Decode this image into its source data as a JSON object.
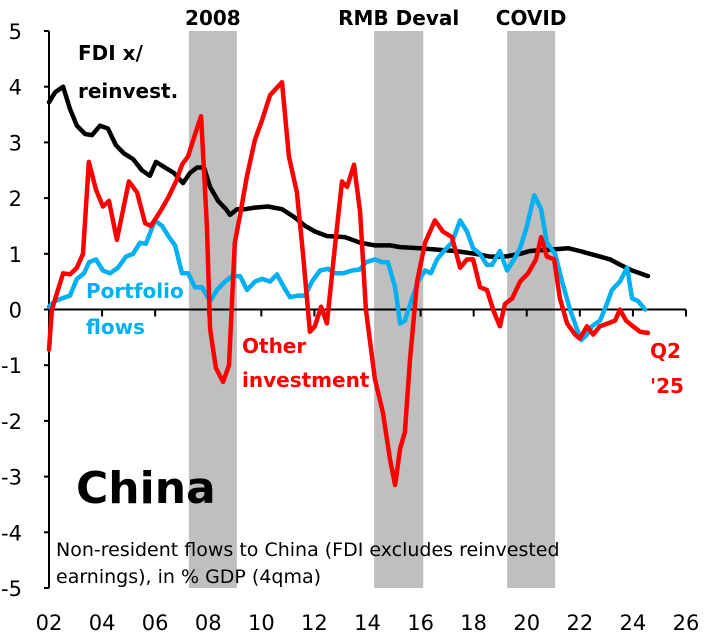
{
  "chart_data": {
    "type": "line",
    "title": "China",
    "note_lines": [
      "Non-resident flows to China (FDI excludes reinvested",
      "earnings), in % GDP (4qma)"
    ],
    "xlim": [
      2002,
      2026
    ],
    "ylim": [
      -5,
      5
    ],
    "x_tick_labels": [
      "02",
      "04",
      "06",
      "08",
      "10",
      "12",
      "14",
      "16",
      "18",
      "20",
      "22",
      "24",
      "26"
    ],
    "y_tick_labels": [
      "5",
      "4",
      "3",
      "2",
      "1",
      "0",
      "-1",
      "-2",
      "-3",
      "-4",
      "-5"
    ],
    "grid": false,
    "shaded_periods": [
      {
        "label": "2008",
        "start": 2007.27,
        "end": 2009.08
      },
      {
        "label": "RMB Deval",
        "start": 2014.25,
        "end": 2016.1
      },
      {
        "label": "COVID",
        "start": 2019.26,
        "end": 2021.07
      }
    ],
    "shade_color": "#bfbfbf",
    "end_label": [
      "Q2",
      "'25"
    ],
    "series": [
      {
        "name": "FDI x/ reinvest.",
        "label_lines": [
          "FDI x/",
          "reinvest."
        ],
        "color": "#000000",
        "points": [
          [
            2002.0,
            3.72
          ],
          [
            2002.23,
            3.9
          ],
          [
            2002.53,
            4.0
          ],
          [
            2002.79,
            3.6
          ],
          [
            2003.05,
            3.3
          ],
          [
            2003.36,
            3.15
          ],
          [
            2003.62,
            3.13
          ],
          [
            2003.92,
            3.3
          ],
          [
            2004.22,
            3.25
          ],
          [
            2004.52,
            2.95
          ],
          [
            2004.83,
            2.8
          ],
          [
            2005.17,
            2.7
          ],
          [
            2005.5,
            2.5
          ],
          [
            2005.8,
            2.4
          ],
          [
            2006.03,
            2.65
          ],
          [
            2006.37,
            2.55
          ],
          [
            2006.71,
            2.45
          ],
          [
            2007.05,
            2.27
          ],
          [
            2007.31,
            2.45
          ],
          [
            2007.58,
            2.55
          ],
          [
            2007.84,
            2.55
          ],
          [
            2008.07,
            2.2
          ],
          [
            2008.37,
            1.95
          ],
          [
            2008.67,
            1.8
          ],
          [
            2008.82,
            1.7
          ],
          [
            2009.09,
            1.8
          ],
          [
            2009.39,
            1.8
          ],
          [
            2009.76,
            1.83
          ],
          [
            2010.25,
            1.85
          ],
          [
            2010.78,
            1.8
          ],
          [
            2011.27,
            1.65
          ],
          [
            2011.65,
            1.5
          ],
          [
            2012.02,
            1.4
          ],
          [
            2012.47,
            1.32
          ],
          [
            2013.15,
            1.3
          ],
          [
            2013.72,
            1.2
          ],
          [
            2014.28,
            1.15
          ],
          [
            2014.85,
            1.15
          ],
          [
            2015.23,
            1.12
          ],
          [
            2015.98,
            1.1
          ],
          [
            2016.73,
            1.07
          ],
          [
            2017.3,
            1.05
          ],
          [
            2018.05,
            1.0
          ],
          [
            2018.62,
            0.95
          ],
          [
            2019.18,
            0.95
          ],
          [
            2019.75,
            1.0
          ],
          [
            2020.12,
            1.05
          ],
          [
            2020.69,
            1.07
          ],
          [
            2021.07,
            1.08
          ],
          [
            2021.56,
            1.1
          ],
          [
            2022.0,
            1.05
          ],
          [
            2022.38,
            1.0
          ],
          [
            2022.76,
            0.95
          ],
          [
            2023.14,
            0.9
          ],
          [
            2023.53,
            0.8
          ],
          [
            2023.97,
            0.7
          ],
          [
            2024.57,
            0.6
          ]
        ]
      },
      {
        "name": "Portfolio flows",
        "label_lines": [
          "Portfolio",
          "flows"
        ],
        "color": "#00b0f0",
        "points": [
          [
            2002.0,
            0.05
          ],
          [
            2002.23,
            0.15
          ],
          [
            2002.49,
            0.2
          ],
          [
            2002.79,
            0.25
          ],
          [
            2003.05,
            0.55
          ],
          [
            2003.32,
            0.65
          ],
          [
            2003.51,
            0.85
          ],
          [
            2003.77,
            0.9
          ],
          [
            2004.03,
            0.7
          ],
          [
            2004.3,
            0.65
          ],
          [
            2004.6,
            0.75
          ],
          [
            2004.9,
            0.95
          ],
          [
            2005.17,
            1.0
          ],
          [
            2005.43,
            1.2
          ],
          [
            2005.65,
            1.18
          ],
          [
            2005.99,
            1.6
          ],
          [
            2006.26,
            1.5
          ],
          [
            2006.52,
            1.3
          ],
          [
            2006.75,
            1.15
          ],
          [
            2007.01,
            0.65
          ],
          [
            2007.24,
            0.65
          ],
          [
            2007.5,
            0.4
          ],
          [
            2007.76,
            0.4
          ],
          [
            2008.07,
            0.15
          ],
          [
            2008.33,
            0.35
          ],
          [
            2008.63,
            0.5
          ],
          [
            2008.9,
            0.6
          ],
          [
            2009.2,
            0.6
          ],
          [
            2009.46,
            0.35
          ],
          [
            2009.76,
            0.5
          ],
          [
            2010.03,
            0.55
          ],
          [
            2010.33,
            0.5
          ],
          [
            2010.59,
            0.63
          ],
          [
            2010.85,
            0.4
          ],
          [
            2011.08,
            0.22
          ],
          [
            2011.38,
            0.25
          ],
          [
            2011.65,
            0.25
          ],
          [
            2011.91,
            0.5
          ],
          [
            2012.21,
            0.7
          ],
          [
            2012.51,
            0.73
          ],
          [
            2012.78,
            0.65
          ],
          [
            2013.08,
            0.65
          ],
          [
            2013.42,
            0.7
          ],
          [
            2013.72,
            0.72
          ],
          [
            2013.94,
            0.85
          ],
          [
            2014.28,
            0.9
          ],
          [
            2014.55,
            0.85
          ],
          [
            2014.77,
            0.85
          ],
          [
            2015.04,
            0.4
          ],
          [
            2015.23,
            -0.25
          ],
          [
            2015.41,
            -0.2
          ],
          [
            2015.68,
            0.2
          ],
          [
            2015.9,
            0.5
          ],
          [
            2016.17,
            0.7
          ],
          [
            2016.39,
            0.65
          ],
          [
            2016.62,
            0.9
          ],
          [
            2016.88,
            1.05
          ],
          [
            2017.18,
            1.2
          ],
          [
            2017.49,
            1.6
          ],
          [
            2017.75,
            1.4
          ],
          [
            2017.98,
            1.1
          ],
          [
            2018.24,
            1.0
          ],
          [
            2018.5,
            0.8
          ],
          [
            2018.69,
            0.8
          ],
          [
            2018.99,
            1.05
          ],
          [
            2019.26,
            0.7
          ],
          [
            2019.52,
            0.9
          ],
          [
            2019.75,
            1.1
          ],
          [
            2020.01,
            1.5
          ],
          [
            2020.28,
            2.05
          ],
          [
            2020.54,
            1.8
          ],
          [
            2020.76,
            1.2
          ],
          [
            2021.07,
            1.0
          ],
          [
            2021.33,
            0.5
          ],
          [
            2021.63,
            0.0
          ],
          [
            2021.89,
            -0.35
          ],
          [
            2022.05,
            -0.55
          ],
          [
            2022.27,
            -0.45
          ],
          [
            2022.46,
            -0.3
          ],
          [
            2022.76,
            -0.2
          ],
          [
            2023.02,
            0.1
          ],
          [
            2023.21,
            0.35
          ],
          [
            2023.51,
            0.5
          ],
          [
            2023.78,
            0.75
          ],
          [
            2023.97,
            0.2
          ],
          [
            2024.19,
            0.15
          ],
          [
            2024.46,
            0.0
          ]
        ]
      },
      {
        "name": "Other investment",
        "label_lines": [
          "Other",
          "investment"
        ],
        "color": "#ff0000",
        "points": [
          [
            2002.0,
            -0.72
          ],
          [
            2002.11,
            0.0
          ],
          [
            2002.53,
            0.65
          ],
          [
            2002.79,
            0.63
          ],
          [
            2003.05,
            0.75
          ],
          [
            2003.28,
            1.0
          ],
          [
            2003.5,
            2.65
          ],
          [
            2003.77,
            2.15
          ],
          [
            2004.03,
            1.85
          ],
          [
            2004.26,
            1.95
          ],
          [
            2004.56,
            1.25
          ],
          [
            2005.01,
            2.3
          ],
          [
            2005.32,
            2.1
          ],
          [
            2005.62,
            1.55
          ],
          [
            2005.84,
            1.5
          ],
          [
            2006.18,
            1.75
          ],
          [
            2006.48,
            2.0
          ],
          [
            2006.79,
            2.3
          ],
          [
            2007.01,
            2.6
          ],
          [
            2007.24,
            2.75
          ],
          [
            2007.54,
            3.2
          ],
          [
            2007.73,
            3.47
          ],
          [
            2007.95,
            1.5
          ],
          [
            2008.07,
            -0.35
          ],
          [
            2008.29,
            -1.05
          ],
          [
            2008.56,
            -1.3
          ],
          [
            2008.78,
            -1.0
          ],
          [
            2009.0,
            1.2
          ],
          [
            2009.2,
            1.7
          ],
          [
            2009.46,
            2.4
          ],
          [
            2009.76,
            3.05
          ],
          [
            2010.03,
            3.4
          ],
          [
            2010.33,
            3.85
          ],
          [
            2010.78,
            4.08
          ],
          [
            2011.04,
            2.75
          ],
          [
            2011.34,
            2.1
          ],
          [
            2011.57,
            1.0
          ],
          [
            2011.83,
            -0.4
          ],
          [
            2012.02,
            -0.3
          ],
          [
            2012.25,
            0.05
          ],
          [
            2012.47,
            -0.25
          ],
          [
            2012.81,
            1.3
          ],
          [
            2013.04,
            2.3
          ],
          [
            2013.23,
            2.2
          ],
          [
            2013.49,
            2.6
          ],
          [
            2013.72,
            1.75
          ],
          [
            2013.94,
            0.0
          ],
          [
            2014.28,
            -1.25
          ],
          [
            2014.58,
            -1.85
          ],
          [
            2014.85,
            -2.7
          ],
          [
            2015.04,
            -3.15
          ],
          [
            2015.23,
            -2.5
          ],
          [
            2015.41,
            -2.2
          ],
          [
            2015.6,
            -0.9
          ],
          [
            2015.87,
            0.5
          ],
          [
            2016.17,
            1.2
          ],
          [
            2016.54,
            1.6
          ],
          [
            2016.84,
            1.4
          ],
          [
            2017.18,
            1.3
          ],
          [
            2017.49,
            0.75
          ],
          [
            2017.75,
            0.9
          ],
          [
            2017.98,
            0.9
          ],
          [
            2018.24,
            0.4
          ],
          [
            2018.5,
            0.35
          ],
          [
            2018.77,
            -0.05
          ],
          [
            2018.99,
            -0.3
          ],
          [
            2019.18,
            0.1
          ],
          [
            2019.45,
            0.2
          ],
          [
            2019.75,
            0.5
          ],
          [
            2020.05,
            0.65
          ],
          [
            2020.35,
            0.9
          ],
          [
            2020.54,
            1.3
          ],
          [
            2020.76,
            0.95
          ],
          [
            2021.03,
            0.9
          ],
          [
            2021.25,
            0.2
          ],
          [
            2021.52,
            -0.25
          ],
          [
            2021.82,
            -0.45
          ],
          [
            2022.0,
            -0.52
          ],
          [
            2022.27,
            -0.3
          ],
          [
            2022.5,
            -0.45
          ],
          [
            2022.76,
            -0.3
          ],
          [
            2023.06,
            -0.25
          ],
          [
            2023.33,
            -0.2
          ],
          [
            2023.51,
            0.0
          ],
          [
            2023.74,
            -0.2
          ],
          [
            2024.0,
            -0.3
          ],
          [
            2024.27,
            -0.4
          ],
          [
            2024.57,
            -0.42
          ]
        ]
      }
    ]
  }
}
